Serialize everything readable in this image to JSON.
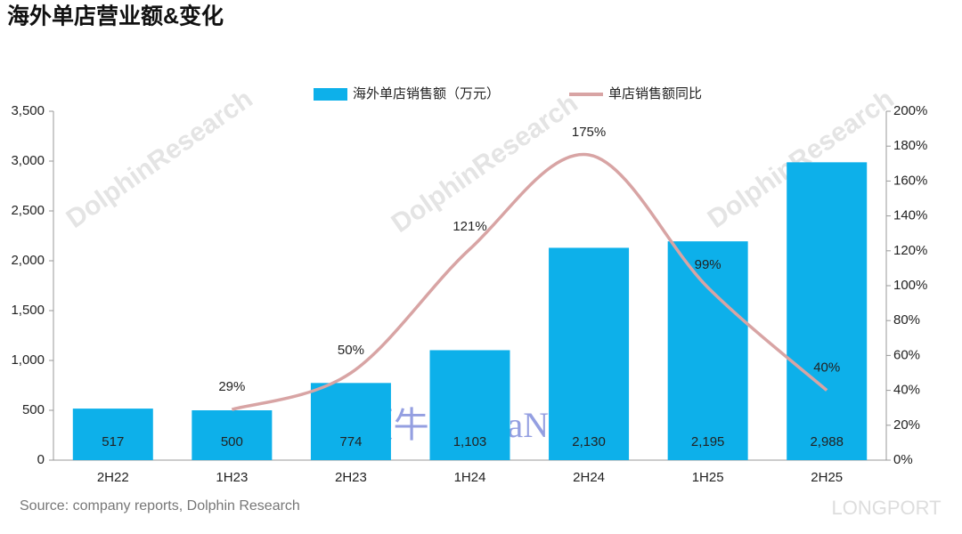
{
  "chart_data": {
    "type": "bar-line",
    "title": "海外单店营业额&变化",
    "source": "Source: company reports, Dolphin Research",
    "watermarks": [
      "DolphinResearch",
      "鞭牛士 BiaNews",
      "LONGPORT"
    ],
    "categories": [
      "2H22",
      "1H23",
      "2H23",
      "1H24",
      "2H24",
      "1H25",
      "2H25"
    ],
    "series": [
      {
        "name": "海外单店销售额（万元）",
        "type": "bar",
        "color": "#0db0ea",
        "values": [
          517,
          500,
          774,
          1103,
          2130,
          2195,
          2988
        ],
        "value_labels": [
          "517",
          "500",
          "774",
          "1,103",
          "2,130",
          "2,195",
          "2,988"
        ]
      },
      {
        "name": "单店销售额同比",
        "type": "line",
        "color": "#d8a4a4",
        "axis": "y2",
        "values": [
          null,
          29,
          50,
          121,
          175,
          99,
          40
        ],
        "value_labels": [
          null,
          "29%",
          "50%",
          "121%",
          "175%",
          "99%",
          "40%"
        ]
      }
    ],
    "ylim": [
      0,
      3500
    ],
    "yticks": [
      0,
      500,
      {
        "value": 1000,
        "label": "1,000"
      },
      {
        "value": 1500,
        "label": "1,500"
      },
      {
        "value": 2000,
        "label": "2,000"
      },
      {
        "value": 2500,
        "label": "2,500"
      },
      {
        "value": 3000,
        "label": "3,000"
      },
      {
        "value": 3500,
        "label": "3,500"
      }
    ],
    "y2lim": [
      0,
      200
    ],
    "y2ticks": [
      {
        "value": 0,
        "label": "0%"
      },
      {
        "value": 20,
        "label": "20%"
      },
      {
        "value": 40,
        "label": "40%"
      },
      {
        "value": 60,
        "label": "60%"
      },
      {
        "value": 80,
        "label": "80%"
      },
      {
        "value": 100,
        "label": "100%"
      },
      {
        "value": 120,
        "label": "120%"
      },
      {
        "value": 140,
        "label": "140%"
      },
      {
        "value": 160,
        "label": "160%"
      },
      {
        "value": 180,
        "label": "180%"
      },
      {
        "value": 200,
        "label": "200%"
      }
    ],
    "legend": "top"
  }
}
